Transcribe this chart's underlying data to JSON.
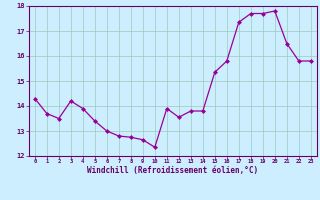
{
  "x": [
    0,
    1,
    2,
    3,
    4,
    5,
    6,
    7,
    8,
    9,
    10,
    11,
    12,
    13,
    14,
    15,
    16,
    17,
    18,
    19,
    20,
    21,
    22,
    23
  ],
  "y": [
    14.3,
    13.7,
    13.5,
    14.2,
    13.9,
    13.4,
    13.0,
    12.8,
    12.75,
    12.65,
    12.35,
    13.9,
    13.55,
    13.8,
    13.8,
    15.35,
    15.8,
    17.35,
    17.7,
    17.7,
    17.8,
    16.5,
    15.8,
    15.8
  ],
  "line_color": "#990099",
  "marker": "D",
  "marker_size": 2,
  "bg_color": "#cceeff",
  "grid_color": "#99ccbb",
  "xlabel": "Windchill (Refroidissement éolien,°C)",
  "xlabel_color": "#660066",
  "tick_color": "#660066",
  "ylim": [
    12,
    18
  ],
  "xlim": [
    -0.5,
    23.5
  ],
  "yticks": [
    12,
    13,
    14,
    15,
    16,
    17,
    18
  ],
  "xticks": [
    0,
    1,
    2,
    3,
    4,
    5,
    6,
    7,
    8,
    9,
    10,
    11,
    12,
    13,
    14,
    15,
    16,
    17,
    18,
    19,
    20,
    21,
    22,
    23
  ]
}
